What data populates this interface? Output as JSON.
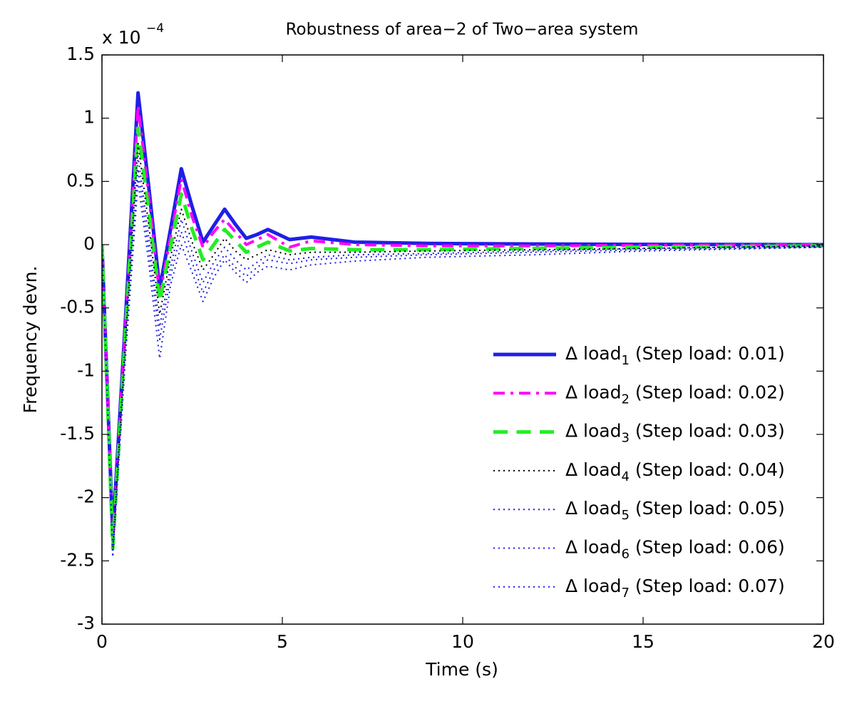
{
  "chart_data": {
    "type": "line",
    "title": "Robustness of area−2 of Two−area system",
    "xlabel": "Time (s)",
    "ylabel": "Frequency devn.",
    "y_scale_base": "x 10",
    "y_scale_exponent": "−4",
    "x": [
      0,
      0.3,
      0.65,
      1.0,
      1.3,
      1.6,
      1.9,
      2.2,
      2.5,
      2.8,
      3.1,
      3.4,
      3.7,
      4.0,
      4.3,
      4.6,
      5.2,
      5.8,
      7,
      9,
      12,
      15,
      20
    ],
    "series": [
      {
        "name": "Δ load1 (Step load: 0.01)",
        "color": "#1f1fe6",
        "linestyle": "solid",
        "linewidth": 5,
        "values": [
          0,
          -2.3,
          -0.6,
          1.2,
          0.45,
          -0.35,
          0.12,
          0.6,
          0.3,
          0.02,
          0.15,
          0.28,
          0.16,
          0.05,
          0.08,
          0.12,
          0.04,
          0.06,
          0.02,
          0.01,
          0.005,
          0.002,
          0
        ]
      },
      {
        "name": "Δ load2 (Step load: 0.02)",
        "color": "#ff00ff",
        "linestyle": "dashdot",
        "linewidth": 4,
        "values": [
          0,
          -2.35,
          -0.65,
          1.1,
          0.38,
          -0.4,
          0.06,
          0.52,
          0.22,
          -0.02,
          0.1,
          0.2,
          0.1,
          0.0,
          0.04,
          0.08,
          -0.02,
          0.03,
          0.0,
          -0.01,
          -0.01,
          -0.005,
          0
        ]
      },
      {
        "name": "Δ load3 (Step load: 0.03)",
        "color": "#22ee22",
        "linestyle": "dashed",
        "linewidth": 5,
        "values": [
          0,
          -2.4,
          -0.7,
          0.92,
          0.25,
          -0.45,
          -0.02,
          0.4,
          0.12,
          -0.12,
          0.0,
          0.12,
          0.03,
          -0.06,
          -0.02,
          0.02,
          -0.05,
          -0.03,
          -0.04,
          -0.04,
          -0.03,
          -0.02,
          -0.01
        ]
      },
      {
        "name": "Δ load4 (Step load: 0.04)",
        "color": "#000000",
        "linestyle": "dotted",
        "linewidth": 2,
        "values": [
          0,
          -2.42,
          -0.75,
          0.8,
          0.15,
          -0.55,
          -0.1,
          0.28,
          0.02,
          -0.2,
          -0.08,
          0.05,
          -0.05,
          -0.12,
          -0.08,
          -0.04,
          -0.08,
          -0.06,
          -0.06,
          -0.05,
          -0.04,
          -0.03,
          -0.01
        ]
      },
      {
        "name": "Δ load5 (Step load: 0.05)",
        "color": "#1f1fe6",
        "linestyle": "dotted",
        "linewidth": 2,
        "values": [
          0,
          -2.45,
          -0.8,
          0.7,
          0.05,
          -0.65,
          -0.18,
          0.2,
          -0.06,
          -0.3,
          -0.14,
          -0.02,
          -0.12,
          -0.2,
          -0.14,
          -0.08,
          -0.12,
          -0.1,
          -0.08,
          -0.07,
          -0.05,
          -0.03,
          -0.01
        ]
      },
      {
        "name": "Δ load6 (Step load: 0.06)",
        "color": "#1f1fe6",
        "linestyle": "dotted",
        "linewidth": 2,
        "values": [
          0,
          -2.45,
          -0.85,
          0.6,
          -0.05,
          -0.75,
          -0.25,
          0.1,
          -0.14,
          -0.38,
          -0.2,
          -0.08,
          -0.18,
          -0.25,
          -0.18,
          -0.12,
          -0.15,
          -0.12,
          -0.1,
          -0.08,
          -0.06,
          -0.04,
          -0.02
        ]
      },
      {
        "name": "Δ load7 (Step load: 0.07)",
        "color": "#1f1fe6",
        "linestyle": "dotted",
        "linewidth": 2,
        "values": [
          0,
          -2.47,
          -0.9,
          0.5,
          -0.15,
          -0.9,
          -0.32,
          0.0,
          -0.22,
          -0.45,
          -0.26,
          -0.12,
          -0.22,
          -0.3,
          -0.22,
          -0.17,
          -0.2,
          -0.16,
          -0.13,
          -0.1,
          -0.08,
          -0.05,
          -0.02
        ]
      }
    ],
    "xlim": [
      0,
      20
    ],
    "xticks": [
      0,
      5,
      10,
      15,
      20
    ],
    "ylim": [
      -3,
      1.5
    ],
    "yticks": [
      -3,
      -2.5,
      -2,
      -1.5,
      -1,
      -0.5,
      0,
      0.5,
      1,
      1.5
    ],
    "grid": false,
    "legend": "lower right"
  }
}
